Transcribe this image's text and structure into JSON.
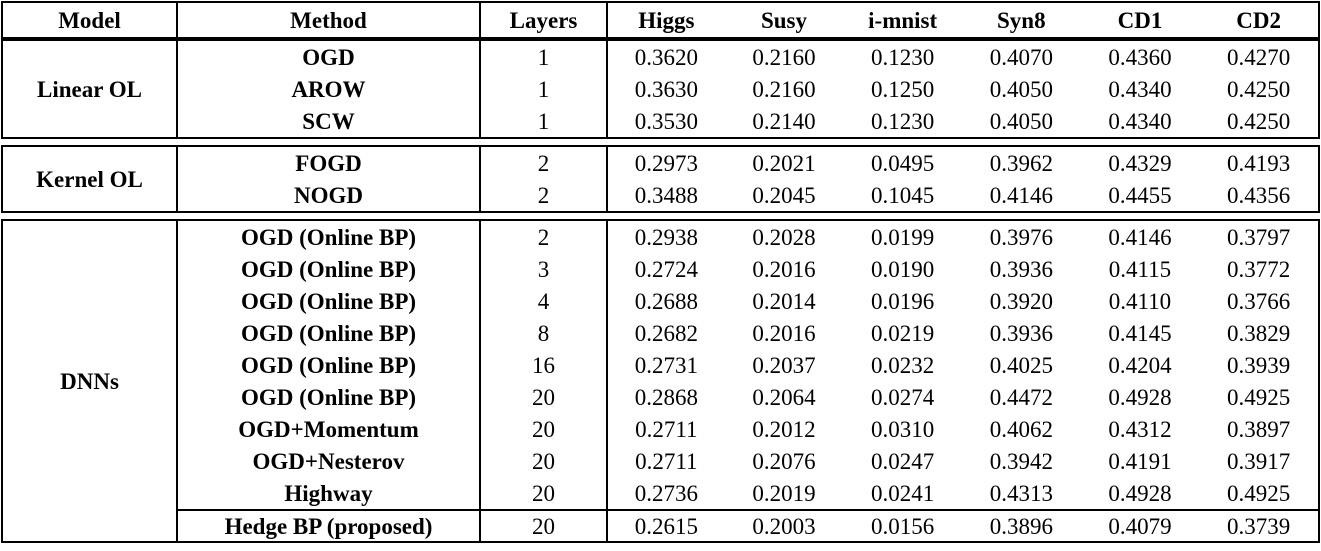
{
  "table": {
    "columns": [
      "Model",
      "Method",
      "Layers",
      "Higgs",
      "Susy",
      "i-mnist",
      "Syn8",
      "CD1",
      "CD2"
    ],
    "text_color": "#000000",
    "border_color": "#000000",
    "sections": [
      {
        "model": "Linear OL",
        "rows": [
          {
            "method": "OGD",
            "layers": "1",
            "values": [
              "0.3620",
              "0.2160",
              "0.1230",
              "0.4070",
              "0.4360",
              "0.4270"
            ]
          },
          {
            "method": "AROW",
            "layers": "1",
            "values": [
              "0.3630",
              "0.2160",
              "0.1250",
              "0.4050",
              "0.4340",
              "0.4250"
            ]
          },
          {
            "method": "SCW",
            "layers": "1",
            "values": [
              "0.3530",
              "0.2140",
              "0.1230",
              "0.4050",
              "0.4340",
              "0.4250"
            ]
          }
        ]
      },
      {
        "model": "Kernel OL",
        "rows": [
          {
            "method": "FOGD",
            "layers": "2",
            "values": [
              "0.2973",
              "0.2021",
              "0.0495",
              "0.3962",
              "0.4329",
              "0.4193"
            ]
          },
          {
            "method": "NOGD",
            "layers": "2",
            "values": [
              "0.3488",
              "0.2045",
              "0.1045",
              "0.4146",
              "0.4455",
              "0.4356"
            ]
          }
        ]
      },
      {
        "model": "DNNs",
        "rows": [
          {
            "method": "OGD (Online BP)",
            "layers": "2",
            "values": [
              "0.2938",
              "0.2028",
              "0.0199",
              "0.3976",
              "0.4146",
              "0.3797"
            ]
          },
          {
            "method": "OGD (Online BP)",
            "layers": "3",
            "values": [
              "0.2724",
              "0.2016",
              "0.0190",
              "0.3936",
              "0.4115",
              "0.3772"
            ]
          },
          {
            "method": "OGD (Online BP)",
            "layers": "4",
            "values": [
              "0.2688",
              "0.2014",
              "0.0196",
              "0.3920",
              "0.4110",
              "0.3766"
            ]
          },
          {
            "method": "OGD (Online BP)",
            "layers": "8",
            "values": [
              "0.2682",
              "0.2016",
              "0.0219",
              "0.3936",
              "0.4145",
              "0.3829"
            ]
          },
          {
            "method": "OGD (Online BP)",
            "layers": "16",
            "values": [
              "0.2731",
              "0.2037",
              "0.0232",
              "0.4025",
              "0.4204",
              "0.3939"
            ]
          },
          {
            "method": "OGD (Online BP)",
            "layers": "20",
            "values": [
              "0.2868",
              "0.2064",
              "0.0274",
              "0.4472",
              "0.4928",
              "0.4925"
            ]
          },
          {
            "method": "OGD+Momentum",
            "layers": "20",
            "values": [
              "0.2711",
              "0.2012",
              "0.0310",
              "0.4062",
              "0.4312",
              "0.3897"
            ]
          },
          {
            "method": "OGD+Nesterov",
            "layers": "20",
            "values": [
              "0.2711",
              "0.2076",
              "0.0247",
              "0.3942",
              "0.4191",
              "0.3917"
            ]
          },
          {
            "method": "Highway",
            "layers": "20",
            "values": [
              "0.2736",
              "0.2019",
              "0.0241",
              "0.4313",
              "0.4928",
              "0.4925"
            ]
          },
          {
            "method": "Hedge BP (proposed)",
            "layers": "20",
            "values": [
              "0.2615",
              "0.2003",
              "0.0156",
              "0.3896",
              "0.4079",
              "0.3739"
            ],
            "bold_values": true,
            "separator_above": true
          }
        ]
      }
    ]
  }
}
